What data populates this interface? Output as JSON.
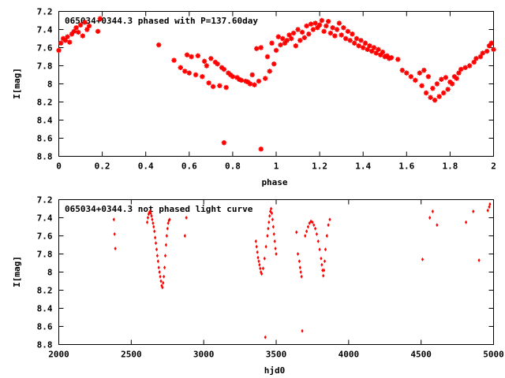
{
  "chart_data": [
    {
      "type": "scatter",
      "title": "065034+0344.3 phased with P=137.60day",
      "xlabel": "phase",
      "ylabel": "I[mag]",
      "xlim": [
        0,
        2
      ],
      "ylim": [
        7.2,
        8.8
      ],
      "y_inverted": true,
      "grid": false,
      "marker": "star",
      "color": "#ff0000",
      "x_ticks": [
        "0",
        "0.2",
        "0.4",
        "0.6",
        "0.8",
        "1",
        "1.2",
        "1.4",
        "1.6",
        "1.8",
        "2"
      ],
      "y_ticks": [
        "7.2",
        "7.4",
        "7.6",
        "7.8",
        "8",
        "8.2",
        "8.4",
        "8.6",
        "8.8"
      ],
      "points": [
        [
          0.0,
          7.63
        ],
        [
          0.01,
          7.55
        ],
        [
          0.02,
          7.5
        ],
        [
          0.03,
          7.52
        ],
        [
          0.04,
          7.48
        ],
        [
          0.05,
          7.54
        ],
        [
          0.06,
          7.45
        ],
        [
          0.07,
          7.42
        ],
        [
          0.08,
          7.38
        ],
        [
          0.09,
          7.43
        ],
        [
          0.1,
          7.35
        ],
        [
          0.11,
          7.47
        ],
        [
          0.12,
          7.32
        ],
        [
          0.13,
          7.4
        ],
        [
          0.14,
          7.36
        ],
        [
          0.18,
          7.42
        ],
        [
          0.19,
          7.28
        ],
        [
          0.46,
          7.57
        ],
        [
          0.53,
          7.74
        ],
        [
          0.56,
          7.82
        ],
        [
          0.58,
          7.86
        ],
        [
          0.59,
          7.68
        ],
        [
          0.6,
          7.88
        ],
        [
          0.61,
          7.7
        ],
        [
          0.63,
          7.9
        ],
        [
          0.64,
          7.69
        ],
        [
          0.66,
          7.92
        ],
        [
          0.67,
          7.75
        ],
        [
          0.68,
          7.8
        ],
        [
          0.69,
          7.99
        ],
        [
          0.7,
          7.72
        ],
        [
          0.71,
          8.03
        ],
        [
          0.72,
          7.76
        ],
        [
          0.73,
          7.78
        ],
        [
          0.74,
          8.02
        ],
        [
          0.75,
          7.82
        ],
        [
          0.76,
          7.84
        ],
        [
          0.77,
          8.04
        ],
        [
          0.78,
          7.88
        ],
        [
          0.79,
          7.9
        ],
        [
          0.8,
          7.92
        ],
        [
          0.82,
          7.93
        ],
        [
          0.83,
          7.95
        ],
        [
          0.84,
          7.96
        ],
        [
          0.86,
          7.97
        ],
        [
          0.87,
          7.98
        ],
        [
          0.88,
          8.0
        ],
        [
          0.89,
          7.9
        ],
        [
          0.9,
          8.01
        ],
        [
          0.91,
          7.61
        ],
        [
          0.92,
          7.97
        ],
        [
          0.93,
          7.6
        ],
        [
          0.95,
          7.94
        ],
        [
          0.96,
          7.7
        ],
        [
          0.97,
          7.86
        ],
        [
          0.98,
          7.55
        ],
        [
          0.99,
          7.78
        ],
        [
          1.0,
          7.63
        ],
        [
          1.01,
          7.48
        ],
        [
          1.02,
          7.57
        ],
        [
          1.03,
          7.5
        ],
        [
          1.04,
          7.55
        ],
        [
          1.05,
          7.52
        ],
        [
          1.06,
          7.46
        ],
        [
          1.07,
          7.5
        ],
        [
          1.08,
          7.44
        ],
        [
          1.09,
          7.58
        ],
        [
          1.1,
          7.4
        ],
        [
          1.11,
          7.52
        ],
        [
          1.12,
          7.43
        ],
        [
          1.13,
          7.49
        ],
        [
          1.14,
          7.36
        ],
        [
          1.15,
          7.45
        ],
        [
          1.16,
          7.34
        ],
        [
          1.17,
          7.4
        ],
        [
          1.18,
          7.33
        ],
        [
          1.19,
          7.38
        ],
        [
          1.2,
          7.35
        ],
        [
          1.21,
          7.3
        ],
        [
          1.22,
          7.42
        ],
        [
          1.23,
          7.36
        ],
        [
          1.24,
          7.31
        ],
        [
          1.25,
          7.44
        ],
        [
          1.26,
          7.38
        ],
        [
          1.27,
          7.47
        ],
        [
          1.28,
          7.4
        ],
        [
          1.29,
          7.33
        ],
        [
          1.3,
          7.46
        ],
        [
          1.31,
          7.38
        ],
        [
          1.32,
          7.5
        ],
        [
          1.33,
          7.42
        ],
        [
          1.34,
          7.52
        ],
        [
          1.35,
          7.45
        ],
        [
          1.36,
          7.55
        ],
        [
          1.37,
          7.5
        ],
        [
          1.38,
          7.58
        ],
        [
          1.39,
          7.52
        ],
        [
          1.4,
          7.6
        ],
        [
          1.41,
          7.55
        ],
        [
          1.42,
          7.62
        ],
        [
          1.43,
          7.58
        ],
        [
          1.44,
          7.64
        ],
        [
          1.45,
          7.6
        ],
        [
          1.46,
          7.66
        ],
        [
          1.47,
          7.62
        ],
        [
          1.48,
          7.68
        ],
        [
          1.49,
          7.65
        ],
        [
          1.5,
          7.7
        ],
        [
          1.51,
          7.69
        ],
        [
          1.52,
          7.72
        ],
        [
          1.53,
          7.71
        ],
        [
          1.56,
          7.73
        ],
        [
          1.58,
          7.85
        ],
        [
          1.6,
          7.88
        ],
        [
          1.62,
          7.92
        ],
        [
          1.64,
          7.96
        ],
        [
          1.66,
          7.88
        ],
        [
          1.67,
          8.02
        ],
        [
          1.68,
          7.85
        ],
        [
          1.69,
          8.1
        ],
        [
          1.7,
          7.92
        ],
        [
          1.71,
          8.15
        ],
        [
          1.72,
          8.05
        ],
        [
          1.73,
          8.18
        ],
        [
          1.74,
          8.0
        ],
        [
          1.75,
          8.14
        ],
        [
          1.76,
          7.95
        ],
        [
          1.77,
          8.1
        ],
        [
          1.78,
          7.93
        ],
        [
          1.79,
          8.06
        ],
        [
          1.8,
          7.98
        ],
        [
          1.81,
          8.0
        ],
        [
          1.82,
          7.92
        ],
        [
          1.83,
          7.94
        ],
        [
          1.84,
          7.88
        ],
        [
          1.85,
          7.84
        ],
        [
          1.87,
          7.82
        ],
        [
          1.89,
          7.8
        ],
        [
          1.91,
          7.76
        ],
        [
          1.92,
          7.72
        ],
        [
          1.94,
          7.7
        ],
        [
          1.95,
          7.66
        ],
        [
          1.97,
          7.64
        ],
        [
          1.98,
          7.58
        ],
        [
          1.99,
          7.55
        ],
        [
          2.0,
          7.62
        ],
        [
          0.76,
          8.65
        ],
        [
          0.93,
          8.72
        ]
      ]
    },
    {
      "type": "scatter",
      "title": "065034+0344.3 not phased light curve",
      "xlabel": "hjd0",
      "ylabel": "I[mag]",
      "xlim": [
        2000,
        5000
      ],
      "ylim": [
        7.2,
        8.8
      ],
      "y_inverted": true,
      "grid": false,
      "marker": "diamond",
      "color": "#ff0000",
      "x_ticks": [
        "2000",
        "2500",
        "3000",
        "3500",
        "4000",
        "4500",
        "5000"
      ],
      "y_ticks": [
        "7.2",
        "7.4",
        "7.6",
        "7.8",
        "8",
        "8.2",
        "8.4",
        "8.6",
        "8.8"
      ],
      "points": [
        [
          2380,
          7.42
        ],
        [
          2385,
          7.58
        ],
        [
          2390,
          7.74
        ],
        [
          2610,
          7.45
        ],
        [
          2615,
          7.4
        ],
        [
          2620,
          7.36
        ],
        [
          2625,
          7.34
        ],
        [
          2630,
          7.33
        ],
        [
          2635,
          7.35
        ],
        [
          2640,
          7.38
        ],
        [
          2645,
          7.42
        ],
        [
          2650,
          7.46
        ],
        [
          2655,
          7.5
        ],
        [
          2660,
          7.55
        ],
        [
          2665,
          7.62
        ],
        [
          2670,
          7.68
        ],
        [
          2675,
          7.75
        ],
        [
          2680,
          7.82
        ],
        [
          2685,
          7.88
        ],
        [
          2690,
          7.95
        ],
        [
          2695,
          8.0
        ],
        [
          2700,
          8.05
        ],
        [
          2705,
          8.1
        ],
        [
          2710,
          8.15
        ],
        [
          2715,
          8.17
        ],
        [
          2720,
          8.12
        ],
        [
          2725,
          8.05
        ],
        [
          2730,
          7.95
        ],
        [
          2735,
          7.82
        ],
        [
          2740,
          7.7
        ],
        [
          2745,
          7.6
        ],
        [
          2750,
          7.52
        ],
        [
          2755,
          7.46
        ],
        [
          2760,
          7.43
        ],
        [
          2765,
          7.42
        ],
        [
          2870,
          7.6
        ],
        [
          2880,
          7.4
        ],
        [
          3360,
          7.66
        ],
        [
          3365,
          7.72
        ],
        [
          3370,
          7.78
        ],
        [
          3375,
          7.84
        ],
        [
          3380,
          7.88
        ],
        [
          3385,
          7.92
        ],
        [
          3390,
          7.96
        ],
        [
          3395,
          8.0
        ],
        [
          3400,
          8.02
        ],
        [
          3410,
          7.96
        ],
        [
          3420,
          7.85
        ],
        [
          3425,
          8.72
        ],
        [
          3430,
          7.72
        ],
        [
          3440,
          7.6
        ],
        [
          3445,
          7.52
        ],
        [
          3450,
          7.45
        ],
        [
          3455,
          7.38
        ],
        [
          3460,
          7.33
        ],
        [
          3465,
          7.3
        ],
        [
          3470,
          7.35
        ],
        [
          3475,
          7.42
        ],
        [
          3480,
          7.5
        ],
        [
          3485,
          7.58
        ],
        [
          3490,
          7.66
        ],
        [
          3495,
          7.74
        ],
        [
          3500,
          7.8
        ],
        [
          3640,
          7.56
        ],
        [
          3650,
          7.8
        ],
        [
          3660,
          7.88
        ],
        [
          3665,
          7.95
        ],
        [
          3670,
          8.0
        ],
        [
          3675,
          8.05
        ],
        [
          3680,
          8.65
        ],
        [
          3700,
          7.6
        ],
        [
          3710,
          7.55
        ],
        [
          3720,
          7.5
        ],
        [
          3730,
          7.46
        ],
        [
          3740,
          7.44
        ],
        [
          3750,
          7.45
        ],
        [
          3760,
          7.48
        ],
        [
          3770,
          7.52
        ],
        [
          3780,
          7.58
        ],
        [
          3790,
          7.66
        ],
        [
          3800,
          7.75
        ],
        [
          3810,
          7.85
        ],
        [
          3815,
          7.92
        ],
        [
          3820,
          7.98
        ],
        [
          3825,
          8.04
        ],
        [
          3830,
          7.98
        ],
        [
          3835,
          7.88
        ],
        [
          3840,
          7.75
        ],
        [
          3850,
          7.6
        ],
        [
          3860,
          7.48
        ],
        [
          3870,
          7.42
        ],
        [
          4510,
          7.86
        ],
        [
          4560,
          7.4
        ],
        [
          4580,
          7.33
        ],
        [
          4610,
          7.48
        ],
        [
          4810,
          7.45
        ],
        [
          4860,
          7.33
        ],
        [
          4900,
          7.87
        ],
        [
          4960,
          7.32
        ],
        [
          4970,
          7.28
        ],
        [
          4975,
          7.25
        ]
      ]
    }
  ]
}
